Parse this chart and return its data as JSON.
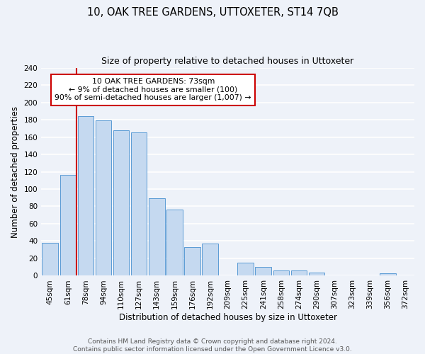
{
  "title": "10, OAK TREE GARDENS, UTTOXETER, ST14 7QB",
  "subtitle": "Size of property relative to detached houses in Uttoxeter",
  "xlabel": "Distribution of detached houses by size in Uttoxeter",
  "ylabel": "Number of detached properties",
  "bar_labels": [
    "45sqm",
    "61sqm",
    "78sqm",
    "94sqm",
    "110sqm",
    "127sqm",
    "143sqm",
    "159sqm",
    "176sqm",
    "192sqm",
    "209sqm",
    "225sqm",
    "241sqm",
    "258sqm",
    "274sqm",
    "290sqm",
    "307sqm",
    "323sqm",
    "339sqm",
    "356sqm",
    "372sqm"
  ],
  "bar_values": [
    38,
    116,
    184,
    179,
    168,
    165,
    89,
    76,
    33,
    37,
    0,
    15,
    10,
    6,
    6,
    4,
    0,
    0,
    0,
    3,
    0
  ],
  "bar_color": "#c5d9f0",
  "bar_edge_color": "#5b9bd5",
  "highlight_line_color": "#cc0000",
  "annotation_text": "10 OAK TREE GARDENS: 73sqm\n← 9% of detached houses are smaller (100)\n90% of semi-detached houses are larger (1,007) →",
  "annotation_box_color": "#ffffff",
  "annotation_box_edge": "#cc0000",
  "ylim": [
    0,
    240
  ],
  "yticks": [
    0,
    20,
    40,
    60,
    80,
    100,
    120,
    140,
    160,
    180,
    200,
    220,
    240
  ],
  "footer_line1": "Contains HM Land Registry data © Crown copyright and database right 2024.",
  "footer_line2": "Contains public sector information licensed under the Open Government Licence v3.0.",
  "bg_color": "#eef2f9",
  "grid_color": "#ffffff",
  "title_fontsize": 10.5,
  "subtitle_fontsize": 9,
  "axis_label_fontsize": 8.5,
  "tick_fontsize": 7.5,
  "footer_fontsize": 6.5
}
